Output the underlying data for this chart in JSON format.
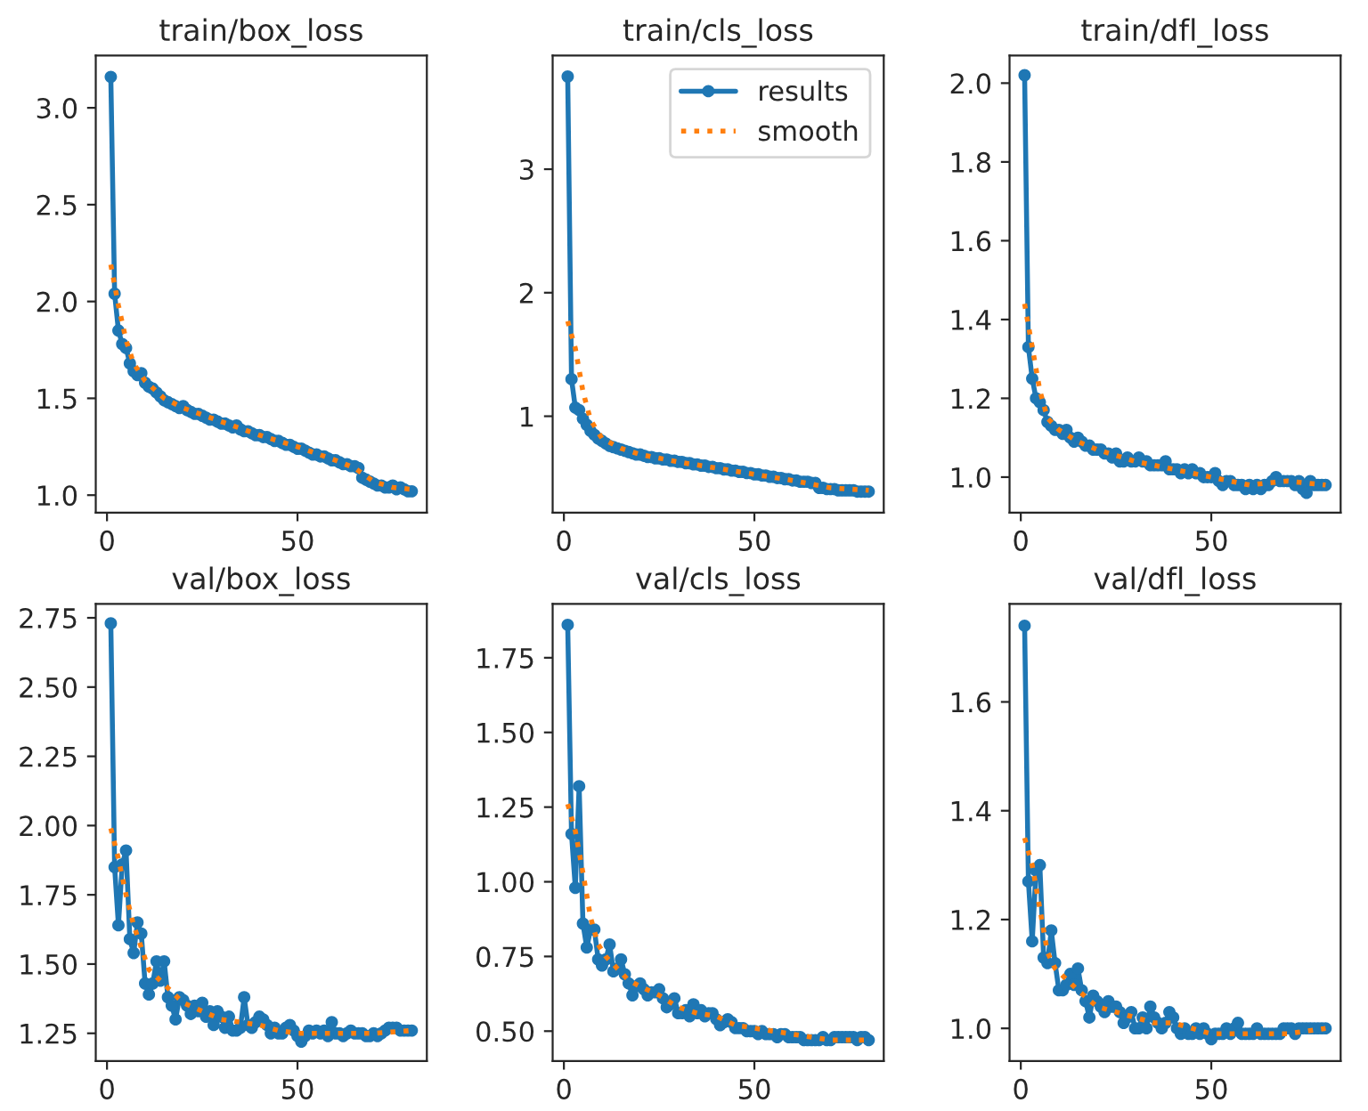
{
  "chart_data": [
    {
      "type": "line",
      "title": "train/box_loss",
      "xlim": [
        -2.95,
        83.95
      ],
      "xticks": [
        0,
        50
      ],
      "ylim": [
        0.91,
        3.27
      ],
      "yticks": [
        {
          "value": 1.0,
          "label": "1.0"
        },
        1.5,
        {
          "value": 2.0,
          "label": "2.0"
        },
        2.5,
        {
          "value": 3.0,
          "label": "3.0"
        }
      ],
      "grid": false,
      "legend": false,
      "series": [
        {
          "color": "#1f77b4",
          "marker": "circle",
          "line_style": "solid",
          "x": [
            1,
            2,
            3,
            4,
            5,
            6,
            7,
            8,
            9,
            10,
            11,
            12,
            13,
            14,
            15,
            16,
            17,
            18,
            19,
            20,
            21,
            22,
            23,
            24,
            25,
            26,
            27,
            28,
            29,
            30,
            31,
            32,
            33,
            34,
            35,
            36,
            37,
            38,
            39,
            40,
            41,
            42,
            43,
            44,
            45,
            46,
            47,
            48,
            49,
            50,
            51,
            52,
            53,
            54,
            55,
            56,
            57,
            58,
            59,
            60,
            61,
            62,
            63,
            64,
            65,
            66,
            67,
            68,
            69,
            70,
            71,
            72,
            73,
            74,
            75,
            76,
            77,
            78,
            79,
            80
          ],
          "values": [
            3.16,
            2.04,
            1.85,
            1.78,
            1.76,
            1.68,
            1.64,
            1.62,
            1.63,
            1.58,
            1.56,
            1.55,
            1.53,
            1.51,
            1.49,
            1.48,
            1.47,
            1.46,
            1.45,
            1.46,
            1.44,
            1.43,
            1.42,
            1.42,
            1.41,
            1.4,
            1.39,
            1.39,
            1.38,
            1.37,
            1.37,
            1.36,
            1.35,
            1.36,
            1.34,
            1.33,
            1.33,
            1.32,
            1.31,
            1.31,
            1.3,
            1.3,
            1.29,
            1.28,
            1.28,
            1.27,
            1.26,
            1.26,
            1.25,
            1.24,
            1.24,
            1.23,
            1.22,
            1.21,
            1.21,
            1.2,
            1.2,
            1.19,
            1.18,
            1.18,
            1.17,
            1.16,
            1.16,
            1.15,
            1.15,
            1.14,
            1.09,
            1.08,
            1.07,
            1.06,
            1.05,
            1.05,
            1.04,
            1.04,
            1.05,
            1.03,
            1.04,
            1.03,
            1.02,
            1.02
          ]
        },
        {
          "color": "#ff7f0e",
          "marker": "none",
          "line_style": "dotted",
          "x": [
            1,
            3,
            5,
            7,
            10,
            15,
            20,
            30,
            40,
            50,
            60,
            65,
            70,
            75,
            80
          ],
          "values": [
            2.19,
            1.98,
            1.8,
            1.68,
            1.59,
            1.5,
            1.45,
            1.38,
            1.31,
            1.25,
            1.18,
            1.14,
            1.07,
            1.04,
            1.03
          ]
        }
      ]
    },
    {
      "type": "line",
      "title": "train/cls_loss",
      "xlim": [
        -2.95,
        83.95
      ],
      "xticks": [
        0,
        50
      ],
      "ylim": [
        0.22,
        3.92
      ],
      "yticks": [
        1,
        2,
        3
      ],
      "grid": false,
      "legend": "top right",
      "series": [
        {
          "name": "results",
          "color": "#1f77b4",
          "marker": "circle",
          "line_style": "solid",
          "x": [
            1,
            2,
            3,
            4,
            5,
            6,
            7,
            8,
            9,
            10,
            11,
            12,
            13,
            14,
            15,
            16,
            17,
            18,
            19,
            20,
            21,
            22,
            23,
            24,
            25,
            26,
            27,
            28,
            29,
            30,
            31,
            32,
            33,
            34,
            35,
            36,
            37,
            38,
            39,
            40,
            41,
            42,
            43,
            44,
            45,
            46,
            47,
            48,
            49,
            50,
            51,
            52,
            53,
            54,
            55,
            56,
            57,
            58,
            59,
            60,
            61,
            62,
            63,
            64,
            65,
            66,
            67,
            68,
            69,
            70,
            71,
            72,
            73,
            74,
            75,
            76,
            77,
            78,
            79,
            80
          ],
          "values": [
            3.75,
            1.3,
            1.07,
            1.05,
            0.98,
            0.93,
            0.88,
            0.85,
            0.82,
            0.8,
            0.78,
            0.76,
            0.75,
            0.74,
            0.73,
            0.72,
            0.71,
            0.7,
            0.69,
            0.69,
            0.68,
            0.67,
            0.67,
            0.66,
            0.66,
            0.65,
            0.65,
            0.64,
            0.64,
            0.63,
            0.63,
            0.62,
            0.62,
            0.61,
            0.61,
            0.6,
            0.6,
            0.59,
            0.59,
            0.58,
            0.58,
            0.57,
            0.57,
            0.56,
            0.56,
            0.55,
            0.55,
            0.54,
            0.54,
            0.53,
            0.53,
            0.52,
            0.52,
            0.51,
            0.51,
            0.5,
            0.5,
            0.49,
            0.49,
            0.48,
            0.48,
            0.47,
            0.47,
            0.47,
            0.46,
            0.46,
            0.42,
            0.42,
            0.41,
            0.41,
            0.41,
            0.4,
            0.4,
            0.4,
            0.4,
            0.4,
            0.39,
            0.39,
            0.39,
            0.39
          ]
        },
        {
          "name": "smooth",
          "color": "#ff7f0e",
          "marker": "none",
          "line_style": "dotted",
          "x": [
            1,
            3,
            5,
            7,
            10,
            15,
            20,
            30,
            40,
            50,
            60,
            70,
            80
          ],
          "values": [
            1.77,
            1.55,
            1.2,
            0.97,
            0.82,
            0.74,
            0.69,
            0.63,
            0.58,
            0.53,
            0.48,
            0.42,
            0.4
          ]
        }
      ]
    },
    {
      "type": "line",
      "title": "train/dfl_loss",
      "xlim": [
        -2.95,
        83.95
      ],
      "xticks": [
        0,
        50
      ],
      "ylim": [
        0.91,
        2.07
      ],
      "yticks": [
        {
          "value": 1.0,
          "label": "1.0"
        },
        1.2,
        1.4,
        1.6,
        1.8,
        {
          "value": 2.0,
          "label": "2.0"
        }
      ],
      "grid": false,
      "legend": false,
      "series": [
        {
          "color": "#1f77b4",
          "marker": "circle",
          "line_style": "solid",
          "x": [
            1,
            2,
            3,
            4,
            5,
            6,
            7,
            8,
            9,
            10,
            11,
            12,
            13,
            14,
            15,
            16,
            17,
            18,
            19,
            20,
            21,
            22,
            23,
            24,
            25,
            26,
            27,
            28,
            29,
            30,
            31,
            32,
            33,
            34,
            35,
            36,
            37,
            38,
            39,
            40,
            41,
            42,
            43,
            44,
            45,
            46,
            47,
            48,
            49,
            50,
            51,
            52,
            53,
            54,
            55,
            56,
            57,
            58,
            59,
            60,
            61,
            62,
            63,
            64,
            65,
            66,
            67,
            68,
            69,
            70,
            71,
            72,
            73,
            74,
            75,
            76,
            77,
            78,
            79,
            80
          ],
          "values": [
            2.02,
            1.33,
            1.25,
            1.2,
            1.19,
            1.17,
            1.14,
            1.13,
            1.12,
            1.12,
            1.11,
            1.12,
            1.1,
            1.09,
            1.1,
            1.09,
            1.08,
            1.08,
            1.07,
            1.07,
            1.07,
            1.06,
            1.06,
            1.05,
            1.06,
            1.04,
            1.04,
            1.05,
            1.04,
            1.04,
            1.05,
            1.04,
            1.04,
            1.03,
            1.03,
            1.03,
            1.03,
            1.04,
            1.02,
            1.02,
            1.02,
            1.01,
            1.02,
            1.01,
            1.02,
            1.01,
            1.01,
            1.0,
            1.0,
            1.0,
            1.01,
            0.99,
            0.98,
            0.99,
            0.99,
            0.98,
            0.98,
            0.98,
            0.97,
            0.98,
            0.97,
            0.98,
            0.97,
            0.98,
            0.98,
            0.99,
            1.0,
            0.99,
            0.99,
            0.99,
            0.99,
            0.98,
            0.99,
            0.97,
            0.96,
            0.99,
            0.98,
            0.98,
            0.98,
            0.98
          ]
        },
        {
          "color": "#ff7f0e",
          "marker": "none",
          "line_style": "dotted",
          "x": [
            1,
            3,
            5,
            7,
            10,
            15,
            20,
            30,
            40,
            50,
            60,
            70,
            80
          ],
          "values": [
            1.44,
            1.33,
            1.22,
            1.15,
            1.12,
            1.09,
            1.07,
            1.04,
            1.02,
            1.0,
            0.98,
            0.99,
            0.98
          ]
        }
      ]
    },
    {
      "type": "line",
      "title": "val/box_loss",
      "xlim": [
        -2.95,
        83.95
      ],
      "xticks": [
        0,
        50
      ],
      "ylim": [
        1.15,
        2.8
      ],
      "yticks": [
        1.25,
        {
          "value": 1.5,
          "label": "1.50"
        },
        1.75,
        {
          "value": 2.0,
          "label": "2.00"
        },
        2.25,
        {
          "value": 2.5,
          "label": "2.50"
        },
        2.75
      ],
      "grid": false,
      "legend": false,
      "series": [
        {
          "color": "#1f77b4",
          "marker": "circle",
          "line_style": "solid",
          "x": [
            1,
            2,
            3,
            4,
            5,
            6,
            7,
            8,
            9,
            10,
            11,
            12,
            13,
            14,
            15,
            16,
            17,
            18,
            19,
            20,
            21,
            22,
            23,
            24,
            25,
            26,
            27,
            28,
            29,
            30,
            31,
            32,
            33,
            34,
            35,
            36,
            37,
            38,
            39,
            40,
            41,
            42,
            43,
            44,
            45,
            46,
            47,
            48,
            49,
            50,
            51,
            52,
            53,
            54,
            55,
            56,
            57,
            58,
            59,
            60,
            61,
            62,
            63,
            64,
            65,
            66,
            67,
            68,
            69,
            70,
            71,
            72,
            73,
            74,
            75,
            76,
            77,
            78,
            79,
            80
          ],
          "values": [
            2.73,
            1.85,
            1.64,
            1.86,
            1.91,
            1.59,
            1.54,
            1.65,
            1.61,
            1.43,
            1.39,
            1.43,
            1.51,
            1.44,
            1.51,
            1.38,
            1.35,
            1.3,
            1.38,
            1.37,
            1.35,
            1.32,
            1.35,
            1.33,
            1.36,
            1.31,
            1.33,
            1.28,
            1.33,
            1.31,
            1.27,
            1.31,
            1.26,
            1.26,
            1.27,
            1.38,
            1.28,
            1.27,
            1.29,
            1.31,
            1.3,
            1.28,
            1.25,
            1.27,
            1.25,
            1.25,
            1.27,
            1.28,
            1.26,
            1.24,
            1.22,
            1.24,
            1.26,
            1.25,
            1.26,
            1.25,
            1.26,
            1.24,
            1.29,
            1.25,
            1.25,
            1.24,
            1.25,
            1.26,
            1.25,
            1.25,
            1.25,
            1.24,
            1.24,
            1.25,
            1.24,
            1.25,
            1.26,
            1.27,
            1.27,
            1.27,
            1.26,
            1.26,
            1.26,
            1.26
          ]
        },
        {
          "color": "#ff7f0e",
          "marker": "none",
          "line_style": "dotted",
          "x": [
            1,
            3,
            5,
            7,
            9,
            11,
            14,
            17,
            20,
            25,
            30,
            35,
            40,
            45,
            50,
            60,
            70,
            80
          ],
          "values": [
            1.99,
            1.88,
            1.75,
            1.64,
            1.56,
            1.48,
            1.44,
            1.4,
            1.36,
            1.33,
            1.3,
            1.29,
            1.28,
            1.26,
            1.25,
            1.25,
            1.25,
            1.26
          ]
        }
      ]
    },
    {
      "type": "line",
      "title": "val/cls_loss",
      "xlim": [
        -2.95,
        83.95
      ],
      "xticks": [
        0,
        50
      ],
      "ylim": [
        0.4,
        1.93
      ],
      "yticks": [
        {
          "value": 0.5,
          "label": "0.50"
        },
        0.75,
        {
          "value": 1.0,
          "label": "1.00"
        },
        1.25,
        {
          "value": 1.5,
          "label": "1.50"
        },
        1.75
      ],
      "grid": false,
      "legend": false,
      "series": [
        {
          "color": "#1f77b4",
          "marker": "circle",
          "line_style": "solid",
          "x": [
            1,
            2,
            3,
            4,
            5,
            6,
            7,
            8,
            9,
            10,
            11,
            12,
            13,
            14,
            15,
            16,
            17,
            18,
            19,
            20,
            21,
            22,
            23,
            24,
            25,
            26,
            27,
            28,
            29,
            30,
            31,
            32,
            33,
            34,
            35,
            36,
            37,
            38,
            39,
            40,
            41,
            42,
            43,
            44,
            45,
            46,
            47,
            48,
            49,
            50,
            51,
            52,
            53,
            54,
            55,
            56,
            57,
            58,
            59,
            60,
            61,
            62,
            63,
            64,
            65,
            66,
            67,
            68,
            69,
            70,
            71,
            72,
            73,
            74,
            75,
            76,
            77,
            78,
            79,
            80
          ],
          "values": [
            1.86,
            1.16,
            0.98,
            1.32,
            0.86,
            0.78,
            0.84,
            0.84,
            0.74,
            0.72,
            0.74,
            0.79,
            0.7,
            0.71,
            0.74,
            0.69,
            0.66,
            0.62,
            0.65,
            0.66,
            0.64,
            0.62,
            0.63,
            0.63,
            0.64,
            0.61,
            0.58,
            0.59,
            0.61,
            0.56,
            0.56,
            0.57,
            0.55,
            0.59,
            0.56,
            0.57,
            0.55,
            0.56,
            0.56,
            0.54,
            0.52,
            0.53,
            0.54,
            0.53,
            0.51,
            0.51,
            0.51,
            0.5,
            0.5,
            0.5,
            0.49,
            0.5,
            0.49,
            0.49,
            0.49,
            0.48,
            0.49,
            0.49,
            0.48,
            0.48,
            0.48,
            0.48,
            0.47,
            0.47,
            0.47,
            0.47,
            0.47,
            0.48,
            0.47,
            0.47,
            0.48,
            0.48,
            0.48,
            0.48,
            0.48,
            0.48,
            0.47,
            0.48,
            0.48,
            0.47
          ]
        },
        {
          "color": "#ff7f0e",
          "marker": "none",
          "line_style": "dotted",
          "x": [
            1,
            3,
            5,
            7,
            9,
            11,
            14,
            17,
            20,
            25,
            30,
            35,
            40,
            45,
            50,
            55,
            60,
            65,
            70,
            80
          ],
          "values": [
            1.26,
            1.17,
            1.03,
            0.88,
            0.79,
            0.75,
            0.71,
            0.67,
            0.65,
            0.62,
            0.58,
            0.56,
            0.55,
            0.52,
            0.51,
            0.5,
            0.49,
            0.48,
            0.47,
            0.47
          ]
        }
      ]
    },
    {
      "type": "line",
      "title": "val/dfl_loss",
      "xlim": [
        -2.95,
        83.95
      ],
      "xticks": [
        0,
        50
      ],
      "ylim": [
        0.94,
        1.78
      ],
      "yticks": [
        {
          "value": 1.0,
          "label": "1.0"
        },
        1.2,
        1.4,
        1.6
      ],
      "grid": false,
      "legend": false,
      "series": [
        {
          "color": "#1f77b4",
          "marker": "circle",
          "line_style": "solid",
          "x": [
            1,
            2,
            3,
            4,
            5,
            6,
            7,
            8,
            9,
            10,
            11,
            12,
            13,
            14,
            15,
            16,
            17,
            18,
            19,
            20,
            21,
            22,
            23,
            24,
            25,
            26,
            27,
            28,
            29,
            30,
            31,
            32,
            33,
            34,
            35,
            36,
            37,
            38,
            39,
            40,
            41,
            42,
            43,
            44,
            45,
            46,
            47,
            48,
            49,
            50,
            51,
            52,
            53,
            54,
            55,
            56,
            57,
            58,
            59,
            60,
            61,
            62,
            63,
            64,
            65,
            66,
            67,
            68,
            69,
            70,
            71,
            72,
            73,
            74,
            75,
            76,
            77,
            78,
            79,
            80
          ],
          "values": [
            1.74,
            1.27,
            1.16,
            1.29,
            1.3,
            1.13,
            1.12,
            1.18,
            1.12,
            1.07,
            1.07,
            1.08,
            1.1,
            1.08,
            1.11,
            1.07,
            1.05,
            1.02,
            1.06,
            1.05,
            1.04,
            1.03,
            1.05,
            1.04,
            1.04,
            1.03,
            1.01,
            1.02,
            1.03,
            1.0,
            1.0,
            1.02,
            1.0,
            1.04,
            1.02,
            1.01,
            1.0,
            1.01,
            1.03,
            1.02,
            1.0,
            0.99,
            1.0,
            0.99,
            0.99,
            1.0,
            0.99,
            1.0,
            0.99,
            0.98,
            0.99,
            0.99,
            0.99,
            1.0,
            0.99,
            1.0,
            1.01,
            0.99,
            0.99,
            0.99,
            0.99,
            1.0,
            0.99,
            0.99,
            0.99,
            0.99,
            0.99,
            0.99,
            1.0,
            1.0,
            1.0,
            0.99,
            1.0,
            1.0,
            1.0,
            1.0,
            1.0,
            1.0,
            1.0,
            1.0
          ]
        },
        {
          "color": "#ff7f0e",
          "marker": "none",
          "line_style": "dotted",
          "x": [
            1,
            3,
            5,
            7,
            9,
            12,
            15,
            20,
            25,
            30,
            35,
            40,
            45,
            50,
            60,
            70,
            80
          ],
          "values": [
            1.35,
            1.3,
            1.22,
            1.14,
            1.11,
            1.09,
            1.07,
            1.04,
            1.03,
            1.02,
            1.01,
            1.01,
            1.0,
            0.99,
            0.99,
            0.99,
            1.0
          ]
        }
      ]
    }
  ]
}
